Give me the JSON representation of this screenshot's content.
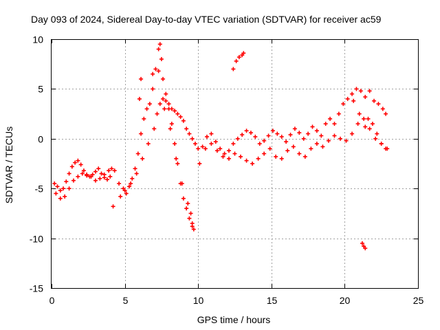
{
  "chart_data": {
    "type": "scatter",
    "title": "Day 093 of 2024, Sidereal Day-to-day VTEC variation (SDTVAR) for receiver ac59",
    "xlabel": "GPS time / hours",
    "ylabel": "SDTVAR / TECUs",
    "xlim": [
      0,
      25
    ],
    "ylim": [
      -15,
      10
    ],
    "xticks": [
      0,
      5,
      10,
      15,
      20,
      25
    ],
    "yticks": [
      -15,
      -10,
      -5,
      0,
      5,
      10
    ],
    "grid": true,
    "marker": "+",
    "series": [
      {
        "name": "SDTVAR",
        "color": "#ff0000",
        "x": [
          0.2,
          0.4,
          0.6,
          0.8,
          1.0,
          1.2,
          1.4,
          1.6,
          1.8,
          2.0,
          2.2,
          2.4,
          2.6,
          2.8,
          3.0,
          3.2,
          3.4,
          3.6,
          3.8,
          4.0,
          4.3,
          4.6,
          4.9,
          5.1,
          5.3,
          5.5,
          5.7,
          5.9,
          6.1,
          6.3,
          6.5,
          6.7,
          6.9,
          7.1,
          7.3,
          7.4,
          7.5,
          7.6,
          7.8,
          8.0,
          8.2,
          8.4,
          8.6,
          8.8,
          9.0,
          9.2,
          9.4,
          9.6,
          9.8,
          10.0,
          10.3,
          10.6,
          10.9,
          11.2,
          11.5,
          11.8,
          12.1,
          12.4,
          12.7,
          13.0,
          13.3,
          13.6,
          13.9,
          14.2,
          14.5,
          14.8,
          15.1,
          15.4,
          15.7,
          16.0,
          16.3,
          16.6,
          16.9,
          17.2,
          17.5,
          17.8,
          18.1,
          18.4,
          18.7,
          19.0,
          19.3,
          19.6,
          19.9,
          20.2,
          20.5,
          20.8,
          21.1,
          21.4,
          21.7,
          22.0,
          22.3,
          22.6,
          22.8,
          0.3,
          0.6,
          0.9,
          1.2,
          1.5,
          1.8,
          2.1,
          2.4,
          2.7,
          3.0,
          3.3,
          3.6,
          3.9,
          4.1,
          4.2,
          4.7,
          5.0,
          5.4,
          5.8,
          6.2,
          6.6,
          7.0,
          7.2,
          7.4,
          7.6,
          7.8,
          8.0,
          8.2,
          8.4,
          8.6,
          8.8,
          9.0,
          9.2,
          9.4,
          9.6,
          9.7,
          10.1,
          10.5,
          10.9,
          11.3,
          11.7,
          12.1,
          12.5,
          12.9,
          13.3,
          13.7,
          14.1,
          14.5,
          14.9,
          15.3,
          15.7,
          16.1,
          16.5,
          16.9,
          17.3,
          17.7,
          18.1,
          18.5,
          18.9,
          19.3,
          19.7,
          20.1,
          20.5,
          20.9,
          21.3,
          21.7,
          22.1,
          22.5,
          22.9,
          12.4,
          12.6,
          12.8,
          13.0,
          13.1,
          21.2,
          21.3,
          21.4,
          6.0,
          6.1,
          6.9,
          7.3,
          7.7,
          8.1,
          8.5,
          8.9,
          9.3,
          9.5,
          9.6,
          20.6,
          21.0,
          21.4,
          21.6,
          21.9,
          22.2,
          22.5,
          22.8
        ],
        "y": [
          -4.5,
          -4.8,
          -5.2,
          -5.0,
          -4.3,
          -3.5,
          -2.8,
          -2.4,
          -2.2,
          -2.6,
          -3.2,
          -3.7,
          -3.8,
          -3.6,
          -3.3,
          -3.0,
          -3.5,
          -3.9,
          -4.1,
          -3.8,
          -3.2,
          -4.5,
          -5.0,
          -5.5,
          -4.8,
          -4.0,
          -3.0,
          -1.5,
          0.5,
          2.0,
          3.0,
          3.5,
          5.0,
          7.0,
          9.0,
          9.5,
          8.0,
          6.0,
          4.5,
          3.5,
          3.0,
          2.8,
          2.5,
          2.2,
          1.8,
          1.0,
          0.5,
          0.0,
          -0.5,
          -1.0,
          -0.8,
          0.2,
          0.5,
          -0.3,
          -1.0,
          -1.5,
          -1.2,
          -0.5,
          0.0,
          0.4,
          0.8,
          0.6,
          0.2,
          -0.5,
          -0.2,
          0.3,
          0.8,
          0.5,
          0.2,
          -0.3,
          0.4,
          1.0,
          0.6,
          0.0,
          0.5,
          1.2,
          0.8,
          0.3,
          1.5,
          2.0,
          1.5,
          2.5,
          3.5,
          4.0,
          4.5,
          5.0,
          4.8,
          4.2,
          4.8,
          3.8,
          3.5,
          3.0,
          2.5,
          -5.5,
          -6.0,
          -5.8,
          -5.0,
          -4.2,
          -3.8,
          -3.5,
          -3.6,
          -3.8,
          -4.2,
          -4.0,
          -3.6,
          -3.2,
          -3.0,
          -6.8,
          -5.8,
          -5.2,
          -4.5,
          -3.5,
          -2.0,
          -0.5,
          1.0,
          2.5,
          3.5,
          4.0,
          3.8,
          3.0,
          1.5,
          -0.5,
          -2.5,
          -4.5,
          -6.0,
          -7.0,
          -8.0,
          -8.8,
          -9.1,
          -2.5,
          -1.0,
          -0.5,
          -1.2,
          -1.8,
          -2.0,
          -1.5,
          -1.8,
          -2.2,
          -2.5,
          -2.0,
          -1.5,
          -1.0,
          -1.8,
          -2.0,
          -1.2,
          -0.8,
          -1.5,
          -1.8,
          -1.0,
          -0.5,
          -0.8,
          -0.2,
          0.3,
          0.0,
          -0.2,
          0.5,
          1.5,
          2.0,
          1.0,
          0.0,
          -0.5,
          -1.0,
          7.0,
          7.8,
          8.2,
          8.4,
          8.6,
          -10.5,
          -10.8,
          -11.0,
          4.0,
          6.0,
          6.5,
          6.8,
          3.0,
          1.0,
          -2.0,
          -4.5,
          -6.5,
          -7.5,
          -8.5,
          3.8,
          2.5,
          1.2,
          2.0,
          1.5,
          0.5,
          -0.5,
          -1.0
        ]
      }
    ]
  }
}
